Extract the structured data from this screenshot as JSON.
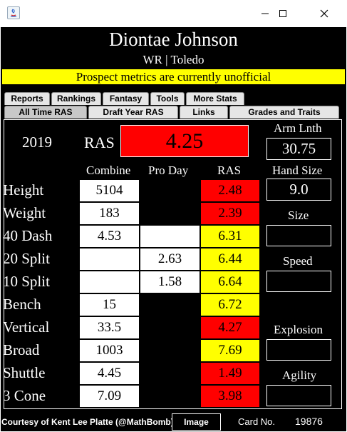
{
  "window": {
    "title": ""
  },
  "player": {
    "name": "Diontae Johnson",
    "position_school": "WR | Toledo"
  },
  "banner": "Prospect metrics are currently unofficial",
  "tabs_top": [
    "Reports",
    "Rankings",
    "Fantasy",
    "Tools",
    "More Stats"
  ],
  "tabs_bottom": [
    "All Time RAS",
    "Draft Year RAS",
    "Links",
    "Grades and Traits"
  ],
  "ras_header": {
    "year": "2019",
    "label": "RAS",
    "score": "4.25"
  },
  "columns": {
    "combine": "Combine",
    "pro_day": "Pro Day",
    "ras": "RAS"
  },
  "rows": [
    {
      "metric": "Height",
      "combine": "5104",
      "pro_day": "",
      "ras": "2.48"
    },
    {
      "metric": "Weight",
      "combine": "183",
      "pro_day": "",
      "ras": "2.39"
    },
    {
      "metric": "40 Dash",
      "combine": "4.53",
      "pro_day": "",
      "ras": "6.31"
    },
    {
      "metric": "20 Split",
      "combine": "",
      "pro_day": "2.63",
      "ras": "6.44"
    },
    {
      "metric": "10 Split",
      "combine": "",
      "pro_day": "1.58",
      "ras": "6.64"
    },
    {
      "metric": "Bench",
      "combine": "15",
      "pro_day": "",
      "ras": "6.72"
    },
    {
      "metric": "Vertical",
      "combine": "33.5",
      "pro_day": "",
      "ras": "4.27"
    },
    {
      "metric": "Broad",
      "combine": "1003",
      "pro_day": "",
      "ras": "7.69"
    },
    {
      "metric": "Shuttle",
      "combine": "4.45",
      "pro_day": "",
      "ras": "1.49"
    },
    {
      "metric": "3 Cone",
      "combine": "7.09",
      "pro_day": "",
      "ras": "3.98"
    }
  ],
  "side": {
    "arm_label": "Arm Lnth",
    "arm_value": "30.75",
    "hand_label": "Hand Size",
    "hand_value": "9.0",
    "size_label": "Size",
    "size_value": "",
    "speed_label": "Speed",
    "speed_value": "",
    "explosion_label": "Explosion",
    "explosion_value": "",
    "agility_label": "Agility",
    "agility_value": ""
  },
  "footer": {
    "credit": "Courtesy of Kent Lee Platte (@MathBomb)",
    "image_button": "Image",
    "card_label": "Card No.",
    "card_number": "19876"
  },
  "colors": {
    "red": "#ff0000",
    "yellow": "#ffff00",
    "background": "#000000"
  }
}
